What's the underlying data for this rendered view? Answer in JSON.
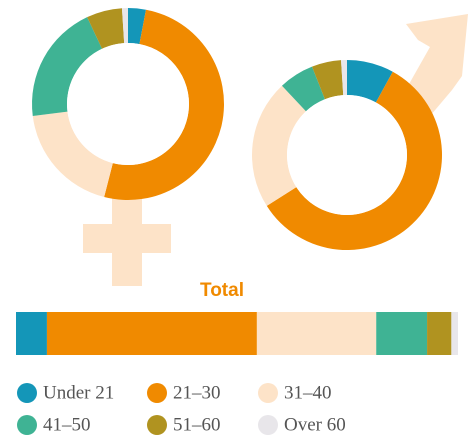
{
  "chart_data": [
    {
      "type": "pie",
      "donut": true,
      "values": [
        3,
        51,
        19,
        20,
        6,
        1
      ],
      "colors": [
        "#1496b8",
        "#f08a00",
        "#fde3c8",
        "#3fb394",
        "#b09320",
        "#e8e6ea"
      ]
    },
    {
      "type": "pie",
      "donut": true,
      "values": [
        8,
        58,
        22,
        6,
        5,
        1
      ],
      "colors": [
        "#1496b8",
        "#f08a00",
        "#fde3c8",
        "#3fb394",
        "#b09320",
        "#e8e6ea"
      ]
    },
    {
      "type": "bar",
      "stacked": true,
      "horizontal": true,
      "title": "Total",
      "series": [
        {
          "name": "Under 21",
          "color": "#1496b8",
          "values": [
            7
          ]
        },
        {
          "name": "21–30",
          "color": "#f08a00",
          "values": [
            47.5
          ]
        },
        {
          "name": "31–40",
          "color": "#fde3c8",
          "values": [
            27
          ]
        },
        {
          "name": "41–50",
          "color": "#3fb394",
          "values": [
            11.5
          ]
        },
        {
          "name": "51–60",
          "color": "#b09320",
          "values": [
            5.5
          ]
        },
        {
          "name": "Over 60",
          "color": "#e8e6ea",
          "values": [
            1.5
          ]
        }
      ]
    }
  ]
}
